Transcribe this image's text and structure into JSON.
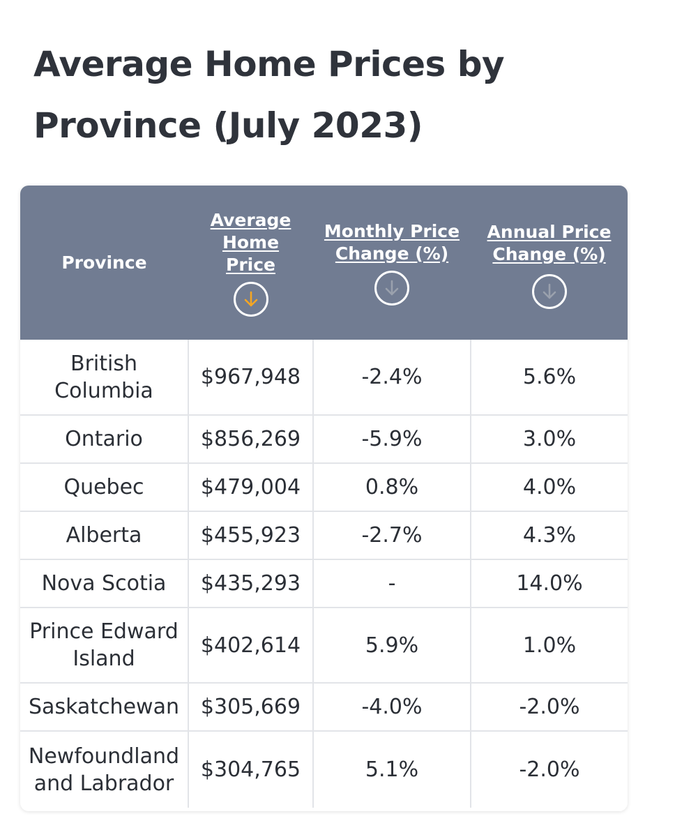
{
  "title": "Average Home Prices by Province (July 2023)",
  "colors": {
    "header_bg": "#717c92",
    "active_sort_arrow": "#f5a623",
    "inactive_sort_arrow": "#9aa1ad",
    "border": "#e2e4e8"
  },
  "table": {
    "headers": {
      "province": "Province",
      "avg_price": "Average Home Price",
      "monthly_change": "Monthly Price Change (%)",
      "annual_change": "Annual Price Change (%)"
    },
    "sort_icons": {
      "avg_price": "arrow-down-circle-icon (active)",
      "monthly_change": "arrow-down-circle-icon",
      "annual_change": "arrow-down-circle-icon"
    },
    "rows": [
      {
        "province": "British Columbia",
        "avg_price": "$967,948",
        "monthly_change": "-2.4%",
        "annual_change": "5.6%"
      },
      {
        "province": "Ontario",
        "avg_price": "$856,269",
        "monthly_change": "-5.9%",
        "annual_change": "3.0%"
      },
      {
        "province": "Quebec",
        "avg_price": "$479,004",
        "monthly_change": "0.8%",
        "annual_change": "4.0%"
      },
      {
        "province": "Alberta",
        "avg_price": "$455,923",
        "monthly_change": "-2.7%",
        "annual_change": "4.3%"
      },
      {
        "province": "Nova Scotia",
        "avg_price": "$435,293",
        "monthly_change": "-",
        "annual_change": "14.0%"
      },
      {
        "province": "Prince Edward Island",
        "avg_price": "$402,614",
        "monthly_change": "5.9%",
        "annual_change": "1.0%"
      },
      {
        "province": "Saskatchewan",
        "avg_price": "$305,669",
        "monthly_change": "-4.0%",
        "annual_change": "-2.0%"
      },
      {
        "province": "Newfoundland and Labrador",
        "avg_price": "$304,765",
        "monthly_change": "5.1%",
        "annual_change": "-2.0%"
      }
    ]
  }
}
